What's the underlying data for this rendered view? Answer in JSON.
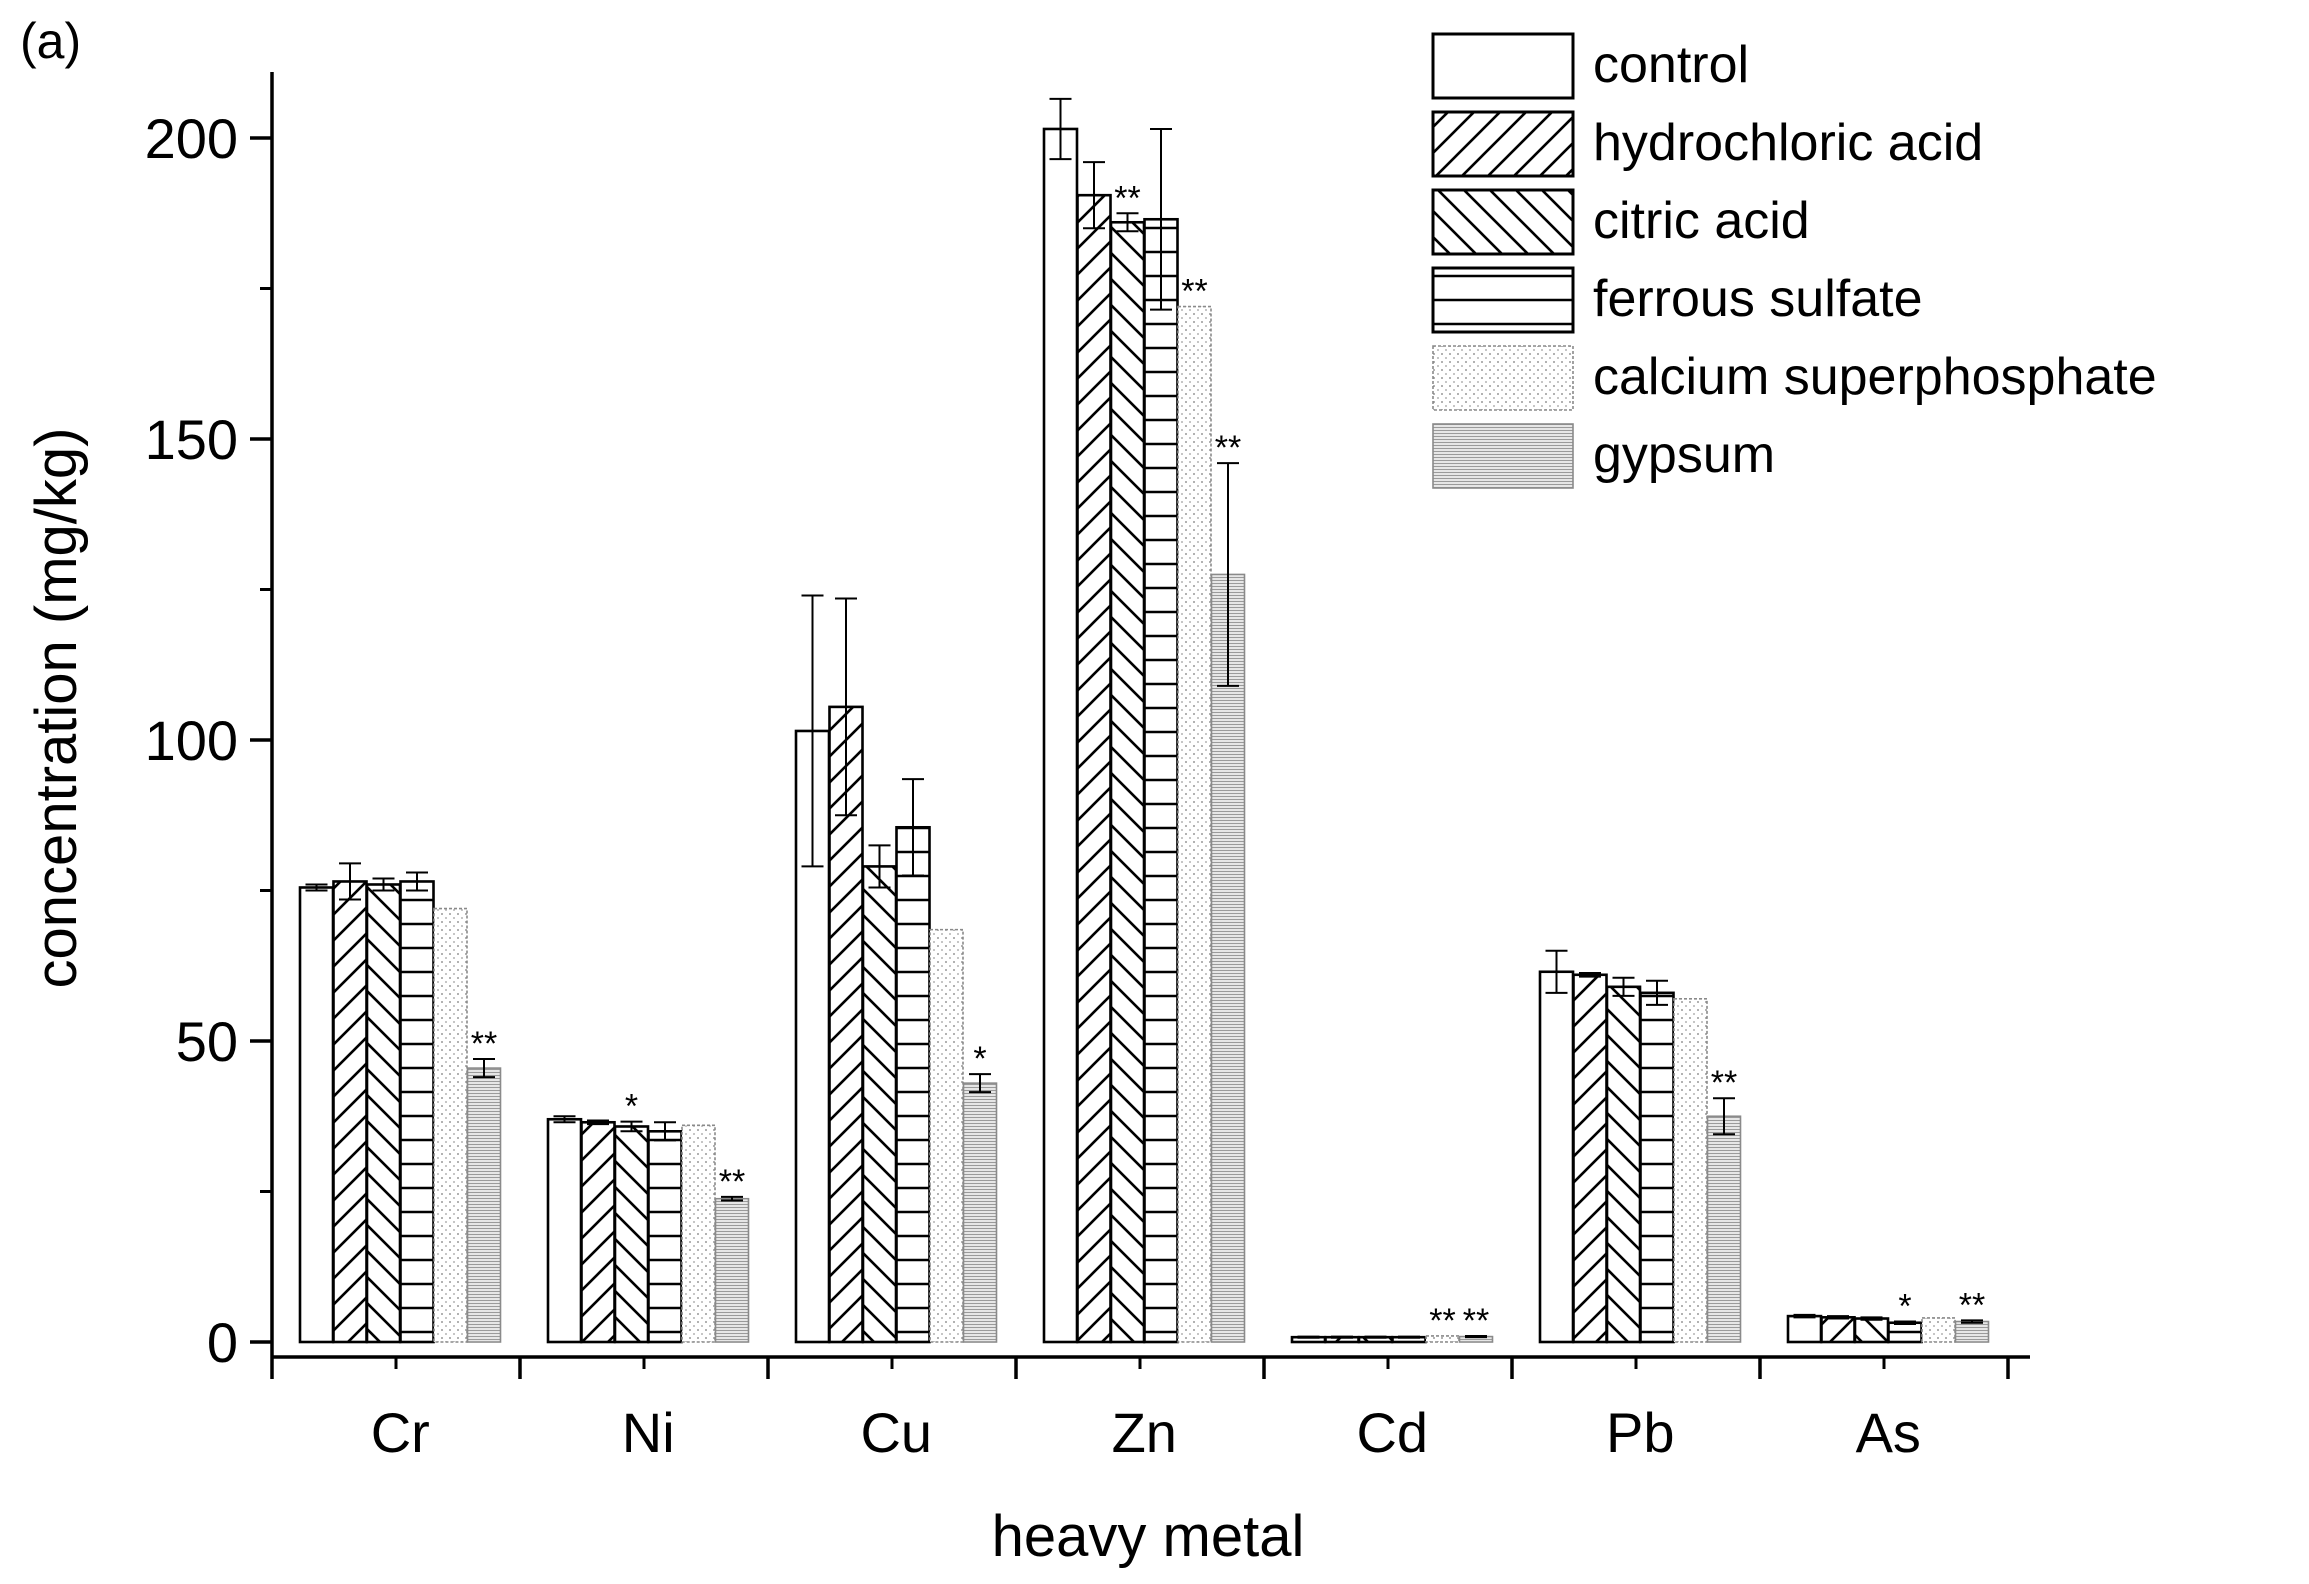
{
  "chart_data": {
    "type": "bar",
    "panel_label": "(a)",
    "title": "",
    "xlabel": "heavy metal",
    "ylabel": "concentration (mg/kg)",
    "ylim": [
      -3,
      210
    ],
    "yticks": [
      0,
      50,
      100,
      150,
      200
    ],
    "grid": false,
    "legend_position": "top-right",
    "categories": [
      "Cr",
      "Ni",
      "Cu",
      "Zn",
      "Cd",
      "Pb",
      "As"
    ],
    "series": [
      {
        "name": "control",
        "pattern": "empty",
        "values": [
          75.5,
          37.0,
          101.5,
          201.5,
          0.8,
          61.5,
          4.3
        ],
        "errors": [
          0.5,
          0.5,
          22.5,
          5.0,
          0.1,
          3.5,
          0.2
        ],
        "significance": [
          "",
          "",
          "",
          "",
          "",
          "",
          ""
        ]
      },
      {
        "name": "hydrochloric acid",
        "pattern": "hatch-forward",
        "values": [
          76.5,
          36.5,
          105.5,
          190.5,
          0.8,
          61.0,
          4.1
        ],
        "errors": [
          3.0,
          0.3,
          18.0,
          5.5,
          0.1,
          0.3,
          0.2
        ],
        "significance": [
          "",
          "",
          "",
          "",
          "",
          "",
          ""
        ]
      },
      {
        "name": "citric acid",
        "pattern": "hatch-back",
        "values": [
          76.0,
          35.8,
          79.0,
          186.0,
          0.8,
          59.0,
          3.9
        ],
        "errors": [
          1.0,
          0.8,
          3.5,
          1.5,
          0.1,
          1.5,
          0.2
        ],
        "significance": [
          "",
          "*",
          "",
          "**",
          "",
          "",
          ""
        ]
      },
      {
        "name": "ferrous sulfate",
        "pattern": "hatch-horizontal",
        "values": [
          76.5,
          35.0,
          85.5,
          186.5,
          0.8,
          58.0,
          3.2
        ],
        "errors": [
          1.5,
          1.5,
          8.0,
          15.0,
          0.1,
          2.0,
          0.2
        ],
        "significance": [
          "",
          "",
          "",
          "",
          "",
          "",
          "*"
        ]
      },
      {
        "name": "calcium superphosphate",
        "pattern": "dots",
        "values": [
          72.0,
          36.0,
          68.5,
          172.0,
          1.0,
          57.0,
          4.0
        ],
        "errors": [
          0,
          0,
          0,
          0,
          0,
          0,
          0
        ],
        "significance": [
          "",
          "",
          "",
          "**",
          "**",
          "",
          ""
        ]
      },
      {
        "name": "gypsum",
        "pattern": "gray-lines",
        "values": [
          45.5,
          23.8,
          43.0,
          127.5,
          0.9,
          37.5,
          3.4
        ],
        "errors": [
          1.5,
          0.3,
          1.5,
          18.5,
          0.1,
          3.0,
          0.2
        ],
        "significance": [
          "**",
          "**",
          "*",
          "**",
          "**",
          "**",
          "**"
        ]
      }
    ]
  }
}
